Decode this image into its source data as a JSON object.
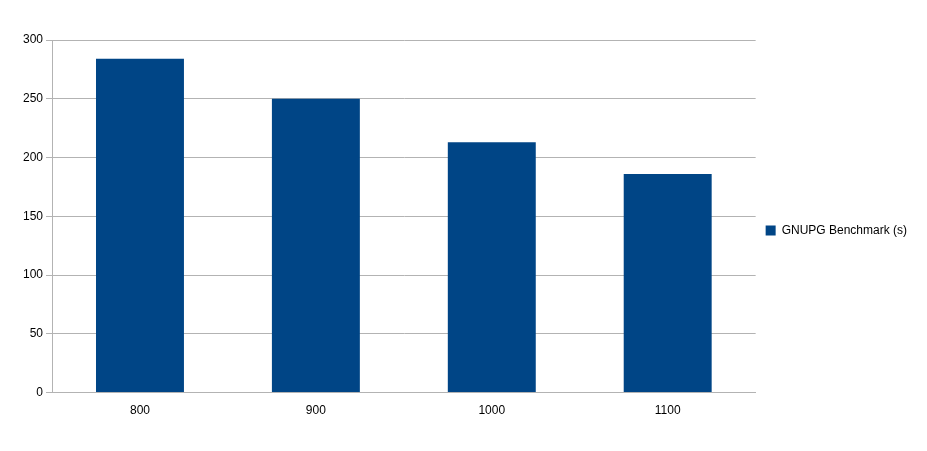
{
  "chart_data": {
    "type": "bar",
    "categories": [
      "800",
      "900",
      "1000",
      "1100"
    ],
    "series": [
      {
        "name": "GNUPG Benchmark (s)",
        "color": "#004586",
        "values": [
          284,
          250,
          213,
          186
        ]
      }
    ],
    "ylim": [
      0,
      300
    ],
    "yticks": [
      0,
      50,
      100,
      150,
      200,
      250,
      300
    ],
    "grid": true,
    "legend": "right"
  }
}
